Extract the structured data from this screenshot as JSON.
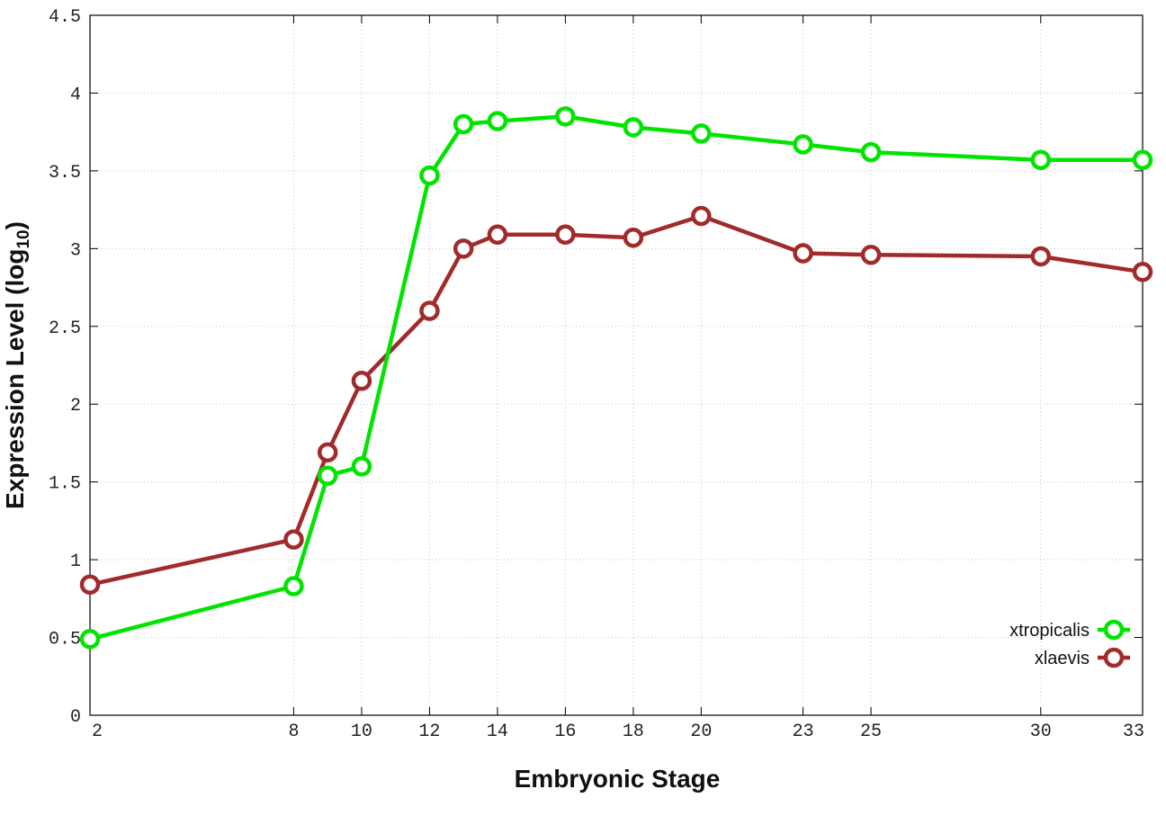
{
  "chart_data": {
    "type": "line",
    "xlabel": "Embryonic Stage",
    "ylabel": "Expression Level (log",
    "ylabel_sub": "10",
    "ylabel_close": ")",
    "x_ticks": [
      2,
      8,
      10,
      12,
      14,
      16,
      18,
      20,
      23,
      25,
      30,
      33
    ],
    "x_tick_labels": [
      "2",
      "8",
      "10",
      "12",
      "14",
      "16",
      "18",
      "20",
      "23",
      "25",
      "30",
      "33"
    ],
    "y_ticks": [
      0,
      0.5,
      1,
      1.5,
      2,
      2.5,
      3,
      3.5,
      4,
      4.5
    ],
    "y_tick_labels": [
      "0",
      "0.5",
      "1",
      "1.5",
      "2",
      "2.5",
      "3",
      "3.5",
      "4",
      "4.5"
    ],
    "ylim": [
      0,
      4.5
    ],
    "grid": true,
    "legend_position": "bottom-right",
    "x": [
      2,
      8,
      9,
      10,
      12,
      13,
      14,
      16,
      18,
      20,
      23,
      25,
      30,
      33
    ],
    "series": [
      {
        "name": "xtropicalis",
        "color": "#00e400",
        "values": [
          0.49,
          0.83,
          1.54,
          1.6,
          3.47,
          3.8,
          3.82,
          3.85,
          3.78,
          3.74,
          3.67,
          3.62,
          3.57,
          3.57
        ]
      },
      {
        "name": "xlaevis",
        "color": "#a12a2a",
        "values": [
          0.84,
          1.13,
          1.69,
          2.15,
          2.6,
          3.0,
          3.09,
          3.09,
          3.07,
          3.21,
          2.97,
          2.96,
          2.95,
          2.85
        ]
      }
    ]
  }
}
